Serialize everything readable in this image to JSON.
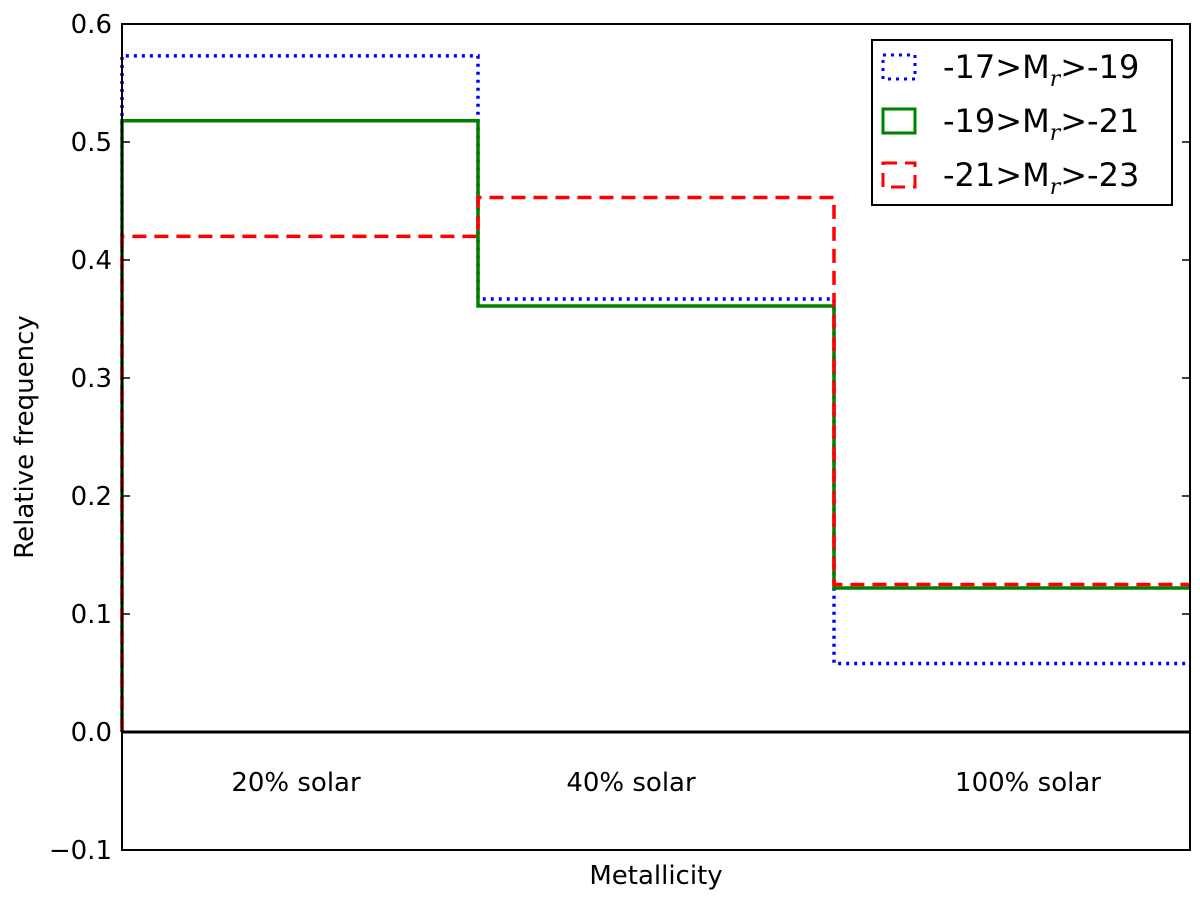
{
  "chart_data": {
    "type": "line",
    "drawstyle": "steps",
    "xlabel": "Metallicity",
    "ylabel": "Relative frequency",
    "ylim": [
      -0.1,
      0.6
    ],
    "yticks": [
      "0.6",
      "0.5",
      "0.4",
      "0.3",
      "0.2",
      "0.1",
      "0.0",
      "−0.1"
    ],
    "ytick_values": [
      0.6,
      0.5,
      0.4,
      0.3,
      0.2,
      0.1,
      0.0,
      -0.1
    ],
    "categories": [
      "20% solar",
      "40% solar",
      "100% solar"
    ],
    "grid": false,
    "legend_position": "top-right",
    "zero_line": true,
    "series": [
      {
        "name": "-17>M_r>-19",
        "legend": {
          "pre": "-17>M",
          "sub": "r",
          "post": ">-19"
        },
        "values": [
          0.573,
          0.367,
          0.058
        ],
        "color": "#0000ff",
        "style": "dotted"
      },
      {
        "name": "-19>M_r>-21",
        "legend": {
          "pre": "-19>M",
          "sub": "r",
          "post": ">-21"
        },
        "values": [
          0.518,
          0.361,
          0.122
        ],
        "color": "#008000",
        "style": "solid"
      },
      {
        "name": "-21>M_r>-23",
        "legend": {
          "pre": "-21>M",
          "sub": "r",
          "post": ">-23"
        },
        "values": [
          0.42,
          0.453,
          0.125
        ],
        "color": "#ff0000",
        "style": "dashed"
      }
    ]
  }
}
